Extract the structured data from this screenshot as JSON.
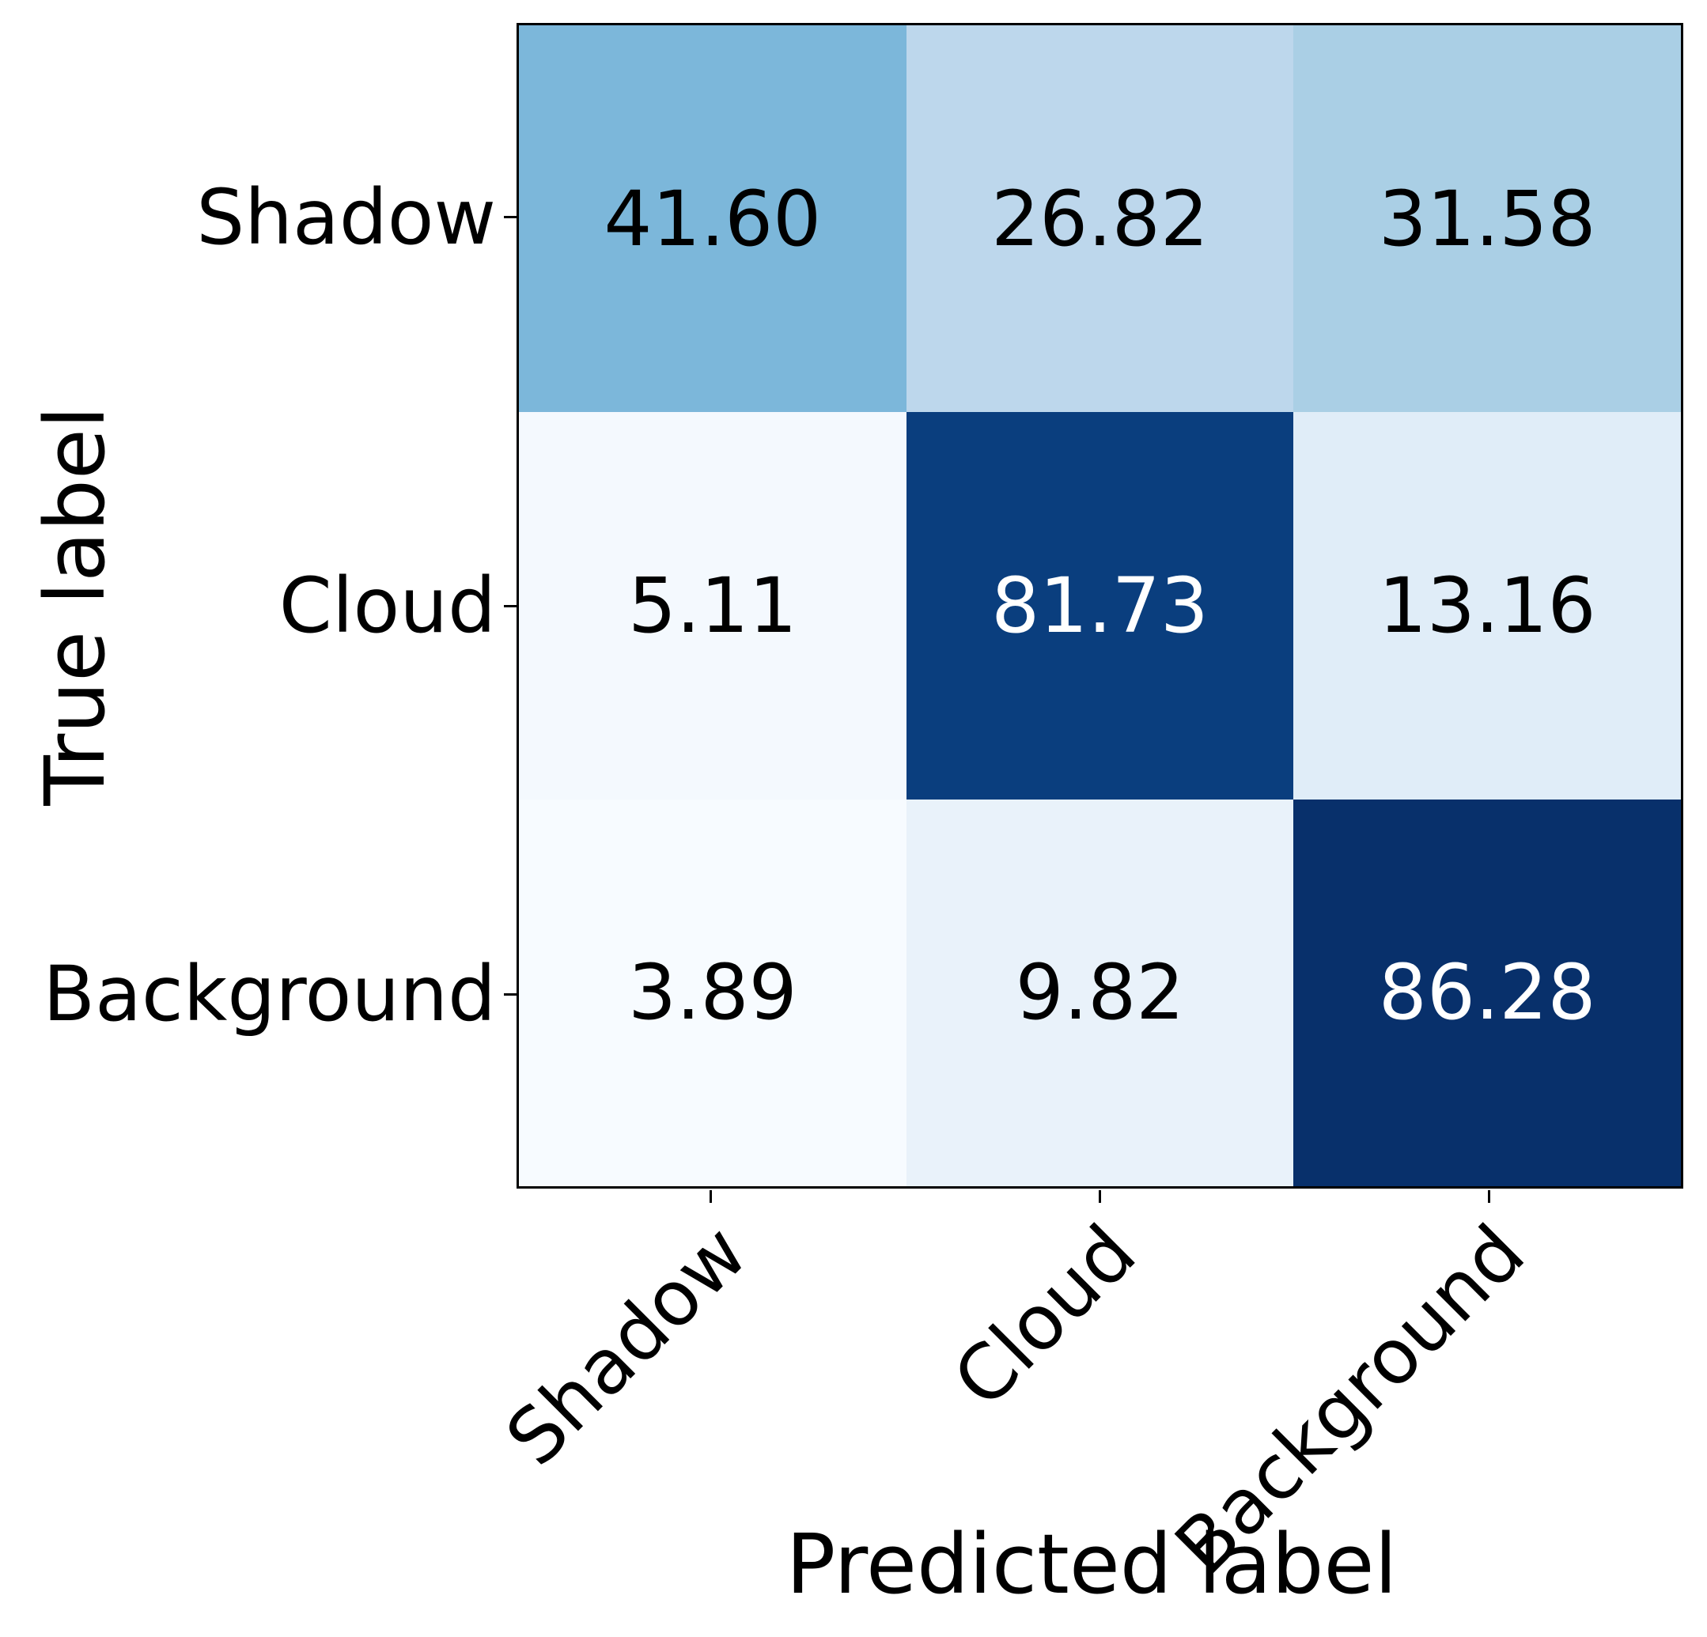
{
  "chart_data": {
    "type": "heatmap",
    "subtype": "confusion-matrix",
    "title": "",
    "xlabel": "Predicted label",
    "ylabel": "True label",
    "categories": [
      "Shadow",
      "Cloud",
      "Background"
    ],
    "x_tick_labels": [
      "Shadow",
      "Cloud",
      "Background"
    ],
    "y_tick_labels": [
      "Shadow",
      "Cloud",
      "Background"
    ],
    "matrix": [
      [
        41.6,
        26.82,
        31.58
      ],
      [
        5.11,
        81.73,
        13.16
      ],
      [
        3.89,
        9.82,
        86.28
      ]
    ],
    "cell_labels": [
      [
        "41.60",
        "26.82",
        "31.58"
      ],
      [
        "5.11",
        "81.73",
        "13.16"
      ],
      [
        "3.89",
        "9.82",
        "86.28"
      ]
    ],
    "cell_colors": [
      [
        "#7CB7DA",
        "#BDD7EC",
        "#AACFE5"
      ],
      [
        "#F4F9FE",
        "#0A3E7E",
        "#E0EDF8"
      ],
      [
        "#F7FBFF",
        "#E9F2FA",
        "#08306B"
      ]
    ],
    "cell_text_colors": [
      [
        "#000000",
        "#000000",
        "#000000"
      ],
      [
        "#000000",
        "#ffffff",
        "#000000"
      ],
      [
        "#000000",
        "#000000",
        "#ffffff"
      ]
    ],
    "colormap": "Blues",
    "value_range": [
      3.89,
      86.28
    ],
    "grid": false,
    "legend": "none",
    "axis_border_color": "#000000",
    "tick_color": "#000000",
    "x_tick_rotation_deg": 45
  }
}
